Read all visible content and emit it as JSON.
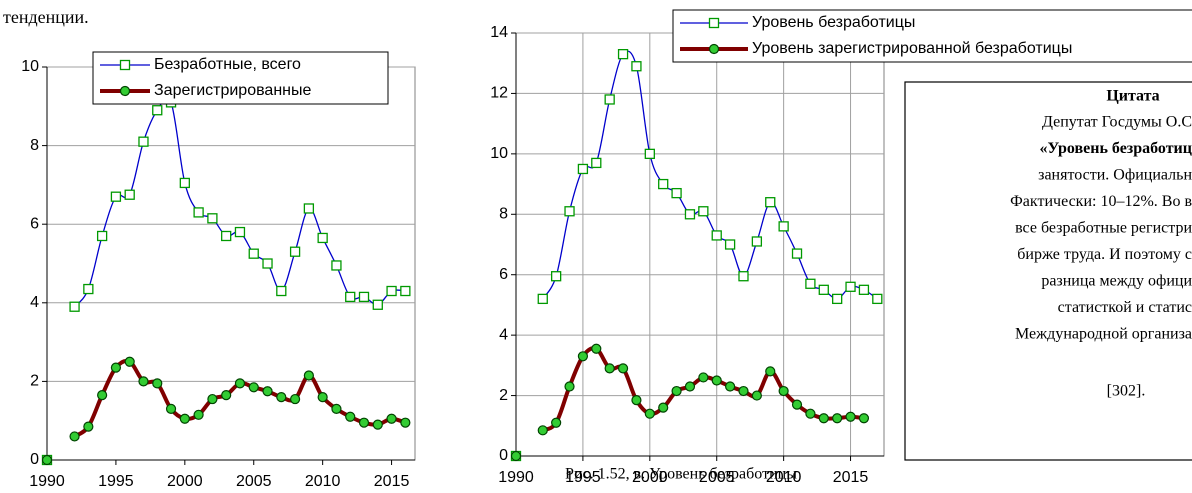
{
  "chart_data": [
    {
      "type": "line",
      "x": [
        1990,
        1991,
        1992,
        1993,
        1994,
        1995,
        1996,
        1997,
        1998,
        1999,
        2000,
        2001,
        2002,
        2003,
        2004,
        2005,
        2006,
        2007,
        2008,
        2009,
        2010,
        2011,
        2012,
        2013,
        2014,
        2015,
        2016
      ],
      "series": [
        {
          "name": "Безработные, всего",
          "color": "#0000cc",
          "marker": "square",
          "marker_color": "#009900",
          "values": [
            0,
            null,
            3.9,
            4.35,
            5.7,
            6.7,
            6.75,
            8.1,
            8.9,
            9.1,
            7.05,
            6.3,
            6.15,
            5.7,
            5.8,
            5.25,
            5.0,
            4.3,
            5.3,
            6.4,
            5.65,
            4.95,
            4.15,
            4.15,
            3.95,
            4.3,
            4.3
          ]
        },
        {
          "name": "Зарегистрированные",
          "color": "#800000",
          "marker": "circle",
          "marker_color": "#33cc33",
          "values": [
            0,
            null,
            0.6,
            0.85,
            1.65,
            2.35,
            2.5,
            2.0,
            1.95,
            1.3,
            1.05,
            1.15,
            1.55,
            1.65,
            1.95,
            1.85,
            1.75,
            1.6,
            1.55,
            2.15,
            1.6,
            1.3,
            1.1,
            0.95,
            0.9,
            1.05,
            0.95
          ]
        }
      ],
      "xlim": [
        1990,
        2016.7
      ],
      "xticks": [
        1990,
        1995,
        2000,
        2005,
        2010,
        2015
      ],
      "ylim": [
        0,
        10
      ],
      "yticks": [
        0,
        2,
        4,
        6,
        8,
        10
      ],
      "grid": "y"
    },
    {
      "type": "line",
      "x": [
        1990,
        1991,
        1992,
        1993,
        1994,
        1995,
        1996,
        1997,
        1998,
        1999,
        2000,
        2001,
        2002,
        2003,
        2004,
        2005,
        2006,
        2007,
        2008,
        2009,
        2010,
        2011,
        2012,
        2013,
        2014,
        2015,
        2016,
        2017
      ],
      "series": [
        {
          "name": "Уровень безработицы",
          "color": "#0000cc",
          "marker": "square",
          "marker_color": "#009900",
          "values": [
            0,
            null,
            5.2,
            5.95,
            8.1,
            9.5,
            9.7,
            11.8,
            13.3,
            12.9,
            10.0,
            9.0,
            8.7,
            8.0,
            8.1,
            7.3,
            7.0,
            5.95,
            7.1,
            8.4,
            7.6,
            6.7,
            5.7,
            5.5,
            5.2,
            5.6,
            5.5,
            5.2
          ]
        },
        {
          "name": "Уровень зарегистрированной безработицы",
          "color": "#800000",
          "marker": "circle",
          "marker_color": "#33cc33",
          "values": [
            0,
            null,
            0.85,
            1.1,
            2.3,
            3.3,
            3.55,
            2.9,
            2.9,
            1.85,
            1.4,
            1.6,
            2.15,
            2.3,
            2.6,
            2.5,
            2.3,
            2.15,
            2.0,
            2.8,
            2.15,
            1.7,
            1.4,
            1.25,
            1.25,
            1.3,
            1.25,
            null
          ]
        }
      ],
      "xlim": [
        1990,
        2017.5
      ],
      "xticks": [
        1990,
        1995,
        2000,
        2005,
        2010,
        2015
      ],
      "ylim": [
        0,
        14
      ],
      "yticks": [
        0,
        2,
        4,
        6,
        8,
        10,
        12,
        14
      ],
      "grid": "both"
    }
  ],
  "text": {
    "top": "тенденции.",
    "caption": "Рис. 1.52, в. Уровень безработицы"
  },
  "quote": {
    "title": "Цитата",
    "lines": [
      "Депутат Госдумы О.С",
      "«Уровень безработиц",
      "занятости. Официальн",
      "Фактически: 10–12%. Во в",
      "все безработные регистри",
      "бирже труда. И поэтому с",
      "разница между офици",
      "статисткой и статис",
      "Международной организа"
    ],
    "ref": "[302]."
  }
}
